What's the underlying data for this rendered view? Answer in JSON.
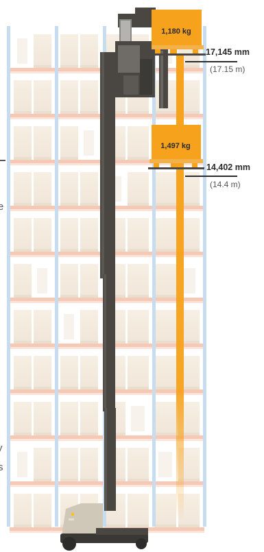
{
  "loads": [
    {
      "weight": "1,180 kg"
    },
    {
      "weight": "1,497 kg"
    }
  ],
  "heights": [
    {
      "mm": "17,145 mm",
      "m": "(17.15 m)"
    },
    {
      "mm": "14,402 mm",
      "m": "(14.4 m)"
    }
  ],
  "colors": {
    "mast": "#4a4743",
    "mast_highlight": "#5b5853",
    "load_orange": "#f6a21c",
    "rack_upright": "#c7dcef",
    "rack_beam": "#f5c9b6",
    "carton": "#f1e8dc",
    "carton_shadow": "#e8dccb",
    "base_body": "#cfc8b8"
  },
  "edge_fragments": [
    "e",
    "y",
    "s"
  ]
}
